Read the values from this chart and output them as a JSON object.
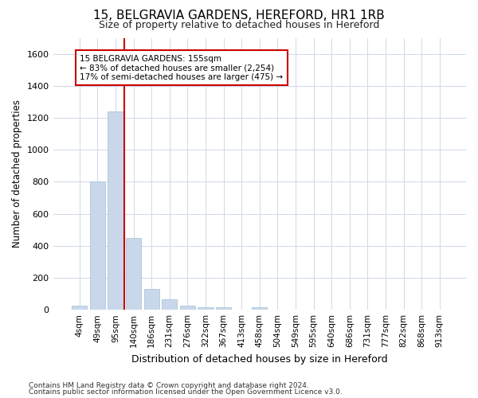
{
  "title_line1": "15, BELGRAVIA GARDENS, HEREFORD, HR1 1RB",
  "title_line2": "Size of property relative to detached houses in Hereford",
  "xlabel": "Distribution of detached houses by size in Hereford",
  "ylabel": "Number of detached properties",
  "footnote1": "Contains HM Land Registry data © Crown copyright and database right 2024.",
  "footnote2": "Contains public sector information licensed under the Open Government Licence v3.0.",
  "annotation_line1": "15 BELGRAVIA GARDENS: 155sqm",
  "annotation_line2": "← 83% of detached houses are smaller (2,254)",
  "annotation_line3": "17% of semi-detached houses are larger (475) →",
  "bar_color": "#c8d8ea",
  "bar_edge_color": "#b0c4d8",
  "vline_color": "#cc0000",
  "annotation_box_edgecolor": "#cc0000",
  "ylim": [
    0,
    1700
  ],
  "yticks": [
    0,
    200,
    400,
    600,
    800,
    1000,
    1200,
    1400,
    1600
  ],
  "categories": [
    "4sqm",
    "49sqm",
    "95sqm",
    "140sqm",
    "186sqm",
    "231sqm",
    "276sqm",
    "322sqm",
    "367sqm",
    "413sqm",
    "458sqm",
    "504sqm",
    "549sqm",
    "595sqm",
    "640sqm",
    "686sqm",
    "731sqm",
    "777sqm",
    "822sqm",
    "868sqm",
    "913sqm"
  ],
  "values": [
    25,
    800,
    1240,
    450,
    130,
    65,
    25,
    15,
    15,
    0,
    15,
    0,
    0,
    0,
    0,
    0,
    0,
    0,
    0,
    0,
    0
  ],
  "background_color": "#ffffff",
  "plot_bg_color": "#ffffff",
  "grid_color": "#d0d8e8",
  "title1_fontsize": 11,
  "title2_fontsize": 9,
  "footnote_fontsize": 6.5
}
